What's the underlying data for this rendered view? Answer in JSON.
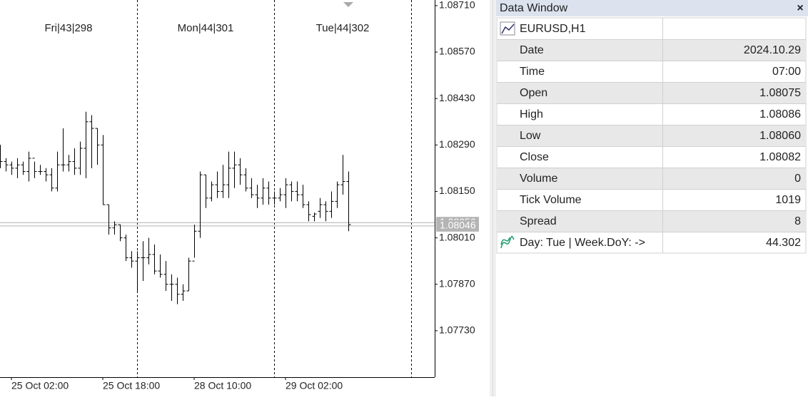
{
  "chart_data": {
    "type": "ohlc",
    "open": [
      1.0829,
      1.0824,
      1.0823,
      1.0822,
      1.0823,
      1.0821,
      1.0825,
      1.0821,
      1.0821,
      1.082,
      1.0816,
      1.0823,
      1.0823,
      1.0824,
      1.0822,
      1.0828,
      1.0836,
      1.0834,
      1.0829,
      1.0811,
      1.0804,
      1.0805,
      1.0801,
      1.0795,
      1.0794,
      1.0795,
      1.0795,
      1.0796,
      1.0791,
      1.079,
      1.0787,
      1.0787,
      1.0784,
      1.0785,
      1.0794,
      1.0803,
      1.082,
      1.0813,
      1.0817,
      1.0815,
      1.0817,
      1.0822,
      1.0823,
      1.082,
      1.0816,
      1.0814,
      1.0813,
      1.0816,
      1.0813,
      1.0813,
      1.0814,
      1.0817,
      1.0815,
      1.0814,
      1.0811,
      1.08075,
      1.0809,
      1.0811,
      1.0809,
      1.0812,
      1.0817,
      1.0818
    ],
    "high": [
      1.0829,
      1.0825,
      1.0824,
      1.0825,
      1.0824,
      1.0827,
      1.0824,
      1.0823,
      1.0822,
      1.0822,
      1.0827,
      1.0834,
      1.0826,
      1.0828,
      1.083,
      1.0839,
      1.0838,
      1.0834,
      1.0832,
      1.0811,
      1.0806,
      1.0805,
      1.0802,
      1.0797,
      1.0797,
      1.08,
      1.0801,
      1.0799,
      1.0796,
      1.0794,
      1.079,
      1.0789,
      1.0787,
      1.0795,
      1.0805,
      1.0821,
      1.082,
      1.0818,
      1.0821,
      1.0823,
      1.0827,
      1.0827,
      1.0825,
      1.0822,
      1.0819,
      1.0817,
      1.0819,
      1.0818,
      1.0815,
      1.0816,
      1.0819,
      1.0818,
      1.0818,
      1.0817,
      1.0812,
      1.08086,
      1.0813,
      1.0812,
      1.0815,
      1.0818,
      1.0826,
      1.0821
    ],
    "low": [
      1.0822,
      1.0821,
      1.082,
      1.0819,
      1.082,
      1.0818,
      1.0819,
      1.082,
      1.0818,
      1.0815,
      1.0815,
      1.0821,
      1.0821,
      1.082,
      1.082,
      1.0819,
      1.0822,
      1.0823,
      1.0811,
      1.0802,
      1.0802,
      1.08,
      1.0794,
      1.0792,
      1.0785,
      1.0788,
      1.0793,
      1.079,
      1.0789,
      1.0785,
      1.0782,
      1.0781,
      1.0782,
      1.0785,
      1.0795,
      1.0801,
      1.081,
      1.0812,
      1.0813,
      1.0813,
      1.0813,
      1.0816,
      1.0817,
      1.0815,
      1.0813,
      1.081,
      1.0811,
      1.0811,
      1.0811,
      1.0812,
      1.081,
      1.0812,
      1.0812,
      1.081,
      1.0806,
      1.0806,
      1.0807,
      1.0806,
      1.0807,
      1.081,
      1.0814,
      1.0803
    ],
    "close": [
      1.0824,
      1.0823,
      1.0822,
      1.0823,
      1.0821,
      1.0825,
      1.0821,
      1.0821,
      1.082,
      1.0816,
      1.0823,
      1.0823,
      1.0824,
      1.0822,
      1.0828,
      1.0836,
      1.0834,
      1.0829,
      1.0811,
      1.0804,
      1.0805,
      1.0801,
      1.0795,
      1.0794,
      1.0795,
      1.0795,
      1.0796,
      1.0791,
      1.079,
      1.0787,
      1.0787,
      1.0784,
      1.0785,
      1.0794,
      1.0803,
      1.082,
      1.0813,
      1.0817,
      1.0815,
      1.0817,
      1.0822,
      1.0823,
      1.082,
      1.0816,
      1.0814,
      1.0813,
      1.0816,
      1.0813,
      1.0813,
      1.0814,
      1.0817,
      1.0815,
      1.0814,
      1.0811,
      1.0808,
      1.08082,
      1.0811,
      1.0809,
      1.0812,
      1.0817,
      1.0818,
      1.0805
    ],
    "xlim": [
      0,
      76.125
    ],
    "xticks": [
      {
        "value": 2,
        "label": "25 Oct 02:00"
      },
      {
        "value": 18,
        "label": "25 Oct 18:00"
      },
      {
        "value": 34,
        "label": "28 Oct 10:00"
      },
      {
        "value": 50,
        "label": "29 Oct 02:00"
      }
    ],
    "ylim": [
      1.0759,
      1.08727
    ],
    "yticks": [
      {
        "value": 1.0871,
        "label": "1.08710"
      },
      {
        "value": 1.0857,
        "label": "1.08570"
      },
      {
        "value": 1.0843,
        "label": "1.08430"
      },
      {
        "value": 1.0829,
        "label": "1.08290"
      },
      {
        "value": 1.0815,
        "label": "1.08150"
      },
      {
        "value": 1.0801,
        "label": "1.08010"
      },
      {
        "value": 1.0787,
        "label": "1.07870"
      },
      {
        "value": 1.0773,
        "label": "1.07730"
      }
    ],
    "separators": [
      24,
      48,
      72
    ],
    "day_labels": [
      "Fri|43|298",
      "Mon|44|301",
      "Tue|44|302"
    ],
    "price_lines": [
      {
        "value": 1.08056,
        "label": "1.08056"
      },
      {
        "value": 1.08046,
        "label": "1.08046"
      }
    ],
    "color": "#000000"
  },
  "data_window": {
    "title": "Data Window",
    "close": "×",
    "symbol": "EURUSD,H1",
    "rows": [
      [
        "Date",
        "2024.10.29"
      ],
      [
        "Time",
        "07:00"
      ],
      [
        "Open",
        "1.08075"
      ],
      [
        "High",
        "1.08086"
      ],
      [
        "Low",
        "1.08060"
      ],
      [
        "Close",
        "1.08082"
      ],
      [
        "Volume",
        "0"
      ],
      [
        "Tick Volume",
        "1019"
      ],
      [
        "Spread",
        "8"
      ]
    ],
    "indicator": [
      "Day: Tue | Week.DoY: ->",
      "44.302"
    ]
  }
}
